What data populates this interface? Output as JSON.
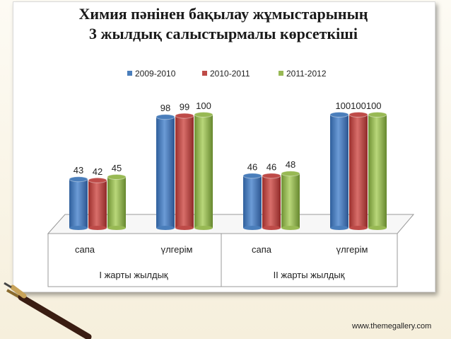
{
  "title_line1": "Химия пәнінен бақылау жұмыстарының",
  "title_line2": "3 жылдық  салыстырмалы көрсеткіші",
  "footer": "www.themegallery.com",
  "chart_data": {
    "type": "bar",
    "groups": [
      {
        "label": "I жарты жылдық",
        "categories": [
          "сапа",
          "үлгерім"
        ]
      },
      {
        "label": "II жарты жылдық",
        "categories": [
          "сапа",
          "үлгерім"
        ]
      }
    ],
    "categories": [
      "сапа",
      "үлгерім",
      "сапа",
      "үлгерім"
    ],
    "series": [
      {
        "name": "2009-2010",
        "color": "#4a7ebb",
        "values": [
          43,
          98,
          46,
          100
        ]
      },
      {
        "name": "2010-2011",
        "color": "#be4b48",
        "values": [
          42,
          99,
          46,
          100
        ]
      },
      {
        "name": "2011-2012",
        "color": "#98b954",
        "values": [
          45,
          100,
          48,
          100
        ]
      }
    ],
    "data_labels": [
      "43",
      "42",
      "45",
      "98",
      "99",
      "100",
      "46",
      "46",
      "48",
      "100100100"
    ],
    "ylim": [
      0,
      110
    ],
    "legend_position": "top",
    "grid": false
  }
}
